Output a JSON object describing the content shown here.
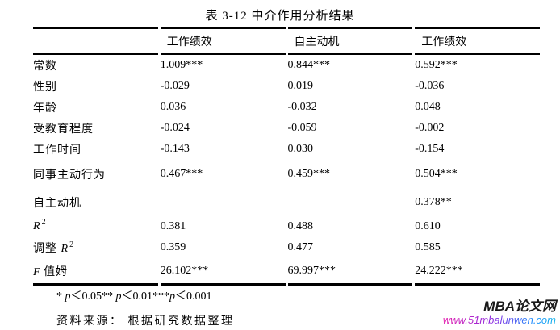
{
  "title": "表 3-12 中介作用分析结果",
  "table": {
    "columns": [
      "",
      "工作绩效",
      "自主动机",
      "工作绩效"
    ],
    "rows": [
      {
        "label": "常数",
        "values": [
          "1.009***",
          "0.844***",
          "0.592***"
        ]
      },
      {
        "label": "性别",
        "values": [
          "-0.029",
          "0.019",
          "-0.036"
        ]
      },
      {
        "label": "年龄",
        "values": [
          "0.036",
          "-0.032",
          "0.048"
        ]
      },
      {
        "label": "受教育程度",
        "values": [
          "-0.024",
          "-0.059",
          "-0.002"
        ]
      },
      {
        "label": "工作时间",
        "values": [
          "-0.143",
          "0.030",
          "-0.154"
        ]
      },
      {
        "label": "同事主动行为",
        "values": [
          "0.467***",
          "0.459***",
          "0.504***"
        ]
      },
      {
        "label": "自主动机",
        "values": [
          "",
          "",
          "0.378**"
        ]
      },
      {
        "label_math": "R",
        "label_sup": "2",
        "values": [
          "0.381",
          "0.488",
          "0.610"
        ]
      },
      {
        "label_prefix": "调整 ",
        "label_math": "R",
        "label_sup": "2",
        "values": [
          "0.359",
          "0.477",
          "0.585"
        ]
      },
      {
        "label_math": "F",
        "label_suffix": " 值姆",
        "values": [
          "26.102***",
          "69.997***",
          "24.222***"
        ]
      }
    ]
  },
  "notes": {
    "significance_parts": [
      "* ",
      "p",
      "＜0.05** ",
      "p",
      "＜0.01***",
      "p",
      "＜0.001"
    ],
    "source": "资料来源： 根据研究数据整理"
  },
  "watermark": {
    "site_name": "MBA论文网",
    "url": "www.51mbalunwen.com",
    "url_gradient_start": "#e620ae",
    "url_gradient_end": "#1e90ff"
  }
}
